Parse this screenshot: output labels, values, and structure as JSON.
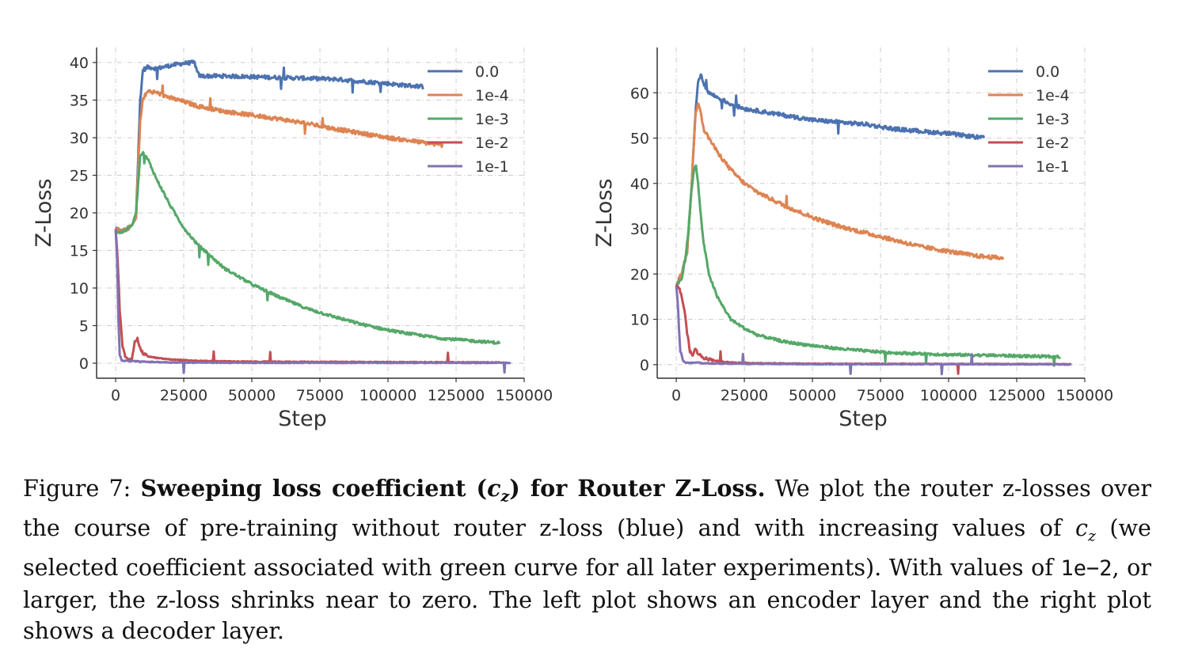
{
  "chart_data": [
    {
      "type": "line",
      "title": "",
      "xlabel": "Step",
      "ylabel": "Z-Loss",
      "xlim": [
        -7000,
        150000
      ],
      "ylim": [
        -2,
        42
      ],
      "xticks": [
        0,
        25000,
        50000,
        75000,
        100000,
        125000,
        150000
      ],
      "yticks": [
        0,
        5,
        10,
        15,
        20,
        25,
        30,
        35,
        40
      ],
      "grid": true,
      "legend_position": "top-right",
      "series": [
        {
          "name": "0.0",
          "color": "#4c72b0",
          "x": [
            0,
            2000,
            4000,
            6000,
            7500,
            9000,
            10000,
            12000,
            15000,
            20000,
            25000,
            29000,
            30000,
            31000,
            40000,
            50000,
            60000,
            70000,
            80000,
            90000,
            100000,
            105000,
            113000
          ],
          "y": [
            18,
            17.5,
            17.8,
            18.3,
            19.5,
            35,
            39,
            39.4,
            39.2,
            39.6,
            39.9,
            40,
            38.6,
            38.2,
            38.2,
            38.1,
            38,
            37.9,
            37.8,
            37.5,
            37.2,
            37,
            36.8
          ]
        },
        {
          "name": "1e-4",
          "color": "#dd8452",
          "x": [
            0,
            2000,
            4000,
            6000,
            7500,
            9000,
            10000,
            12000,
            15000,
            20000,
            25000,
            30000,
            40000,
            50000,
            60000,
            70000,
            80000,
            90000,
            100000,
            110000,
            120000
          ],
          "y": [
            18,
            17.5,
            17.8,
            18.3,
            19.5,
            32,
            35.2,
            36.2,
            36,
            35.3,
            34.8,
            34.2,
            33.5,
            33,
            32.5,
            31.9,
            31.2,
            30.6,
            30,
            29.5,
            29
          ]
        },
        {
          "name": "1e-3",
          "color": "#55a868",
          "x": [
            0,
            2000,
            4000,
            6000,
            7500,
            9000,
            10000,
            12000,
            15000,
            20000,
            25000,
            30000,
            40000,
            50000,
            60000,
            70000,
            80000,
            90000,
            100000,
            110000,
            120000,
            130000,
            141000
          ],
          "y": [
            17.5,
            17.4,
            17.8,
            18.3,
            20,
            27.5,
            28,
            27,
            24.5,
            21,
            18,
            15.8,
            12.6,
            10.5,
            8.8,
            7.3,
            6.2,
            5.2,
            4.4,
            3.8,
            3.3,
            3,
            2.7
          ]
        },
        {
          "name": "1e-2",
          "color": "#c44e52",
          "x": [
            0,
            700,
            1500,
            2500,
            3500,
            5000,
            6000,
            7000,
            8000,
            9000,
            10000,
            12000,
            15000,
            20000,
            30000,
            50000,
            100000,
            141000
          ],
          "y": [
            17.8,
            14,
            7,
            2.3,
            0.8,
            0.5,
            0.6,
            3,
            3.2,
            2,
            1.3,
            0.9,
            0.7,
            0.5,
            0.3,
            0.2,
            0.15,
            0.1
          ]
        },
        {
          "name": "1e-1",
          "color": "#8172b3",
          "x": [
            0,
            500,
            1000,
            1500,
            2200,
            3000,
            5000,
            10000,
            20000,
            50000,
            100000,
            145000
          ],
          "y": [
            17.8,
            14,
            6,
            1.2,
            0.3,
            0.3,
            0.3,
            0.2,
            0.1,
            0.05,
            0.05,
            0.05
          ]
        }
      ]
    },
    {
      "type": "line",
      "title": "",
      "xlabel": "Step",
      "ylabel": "Z-Loss",
      "xlim": [
        -7000,
        150000
      ],
      "ylim": [
        -3,
        70
      ],
      "xticks": [
        0,
        25000,
        50000,
        75000,
        100000,
        125000,
        150000
      ],
      "yticks": [
        0,
        10,
        20,
        30,
        40,
        50,
        60
      ],
      "grid": true,
      "legend_position": "top-right",
      "series": [
        {
          "name": "0.0",
          "color": "#4c72b0",
          "x": [
            0,
            2000,
            4000,
            5500,
            7000,
            8000,
            9000,
            10000,
            12000,
            15000,
            20000,
            25000,
            30000,
            40000,
            50000,
            60000,
            70000,
            80000,
            90000,
            100000,
            113000
          ],
          "y": [
            17.5,
            20,
            25,
            38,
            55,
            62,
            64,
            62,
            60,
            59,
            57.5,
            56.5,
            56,
            55,
            54,
            53.5,
            53,
            52,
            51.5,
            51,
            50
          ]
        },
        {
          "name": "1e-4",
          "color": "#dd8452",
          "x": [
            0,
            2000,
            4000,
            5500,
            7000,
            8000,
            9000,
            10000,
            12000,
            15000,
            20000,
            25000,
            30000,
            40000,
            50000,
            60000,
            70000,
            80000,
            90000,
            100000,
            110000,
            120000
          ],
          "y": [
            17.5,
            20,
            25,
            38,
            55,
            58,
            56,
            52,
            50,
            47,
            43,
            40,
            38,
            35,
            32.5,
            30.5,
            29,
            27.5,
            26,
            25,
            24,
            23.5
          ]
        },
        {
          "name": "1e-3",
          "color": "#55a868",
          "x": [
            0,
            2000,
            3500,
            4500,
            5500,
            6500,
            7200,
            8000,
            9000,
            10000,
            12000,
            15000,
            20000,
            25000,
            30000,
            40000,
            50000,
            60000,
            70000,
            80000,
            100000,
            120000,
            141000
          ],
          "y": [
            17.5,
            19,
            24,
            30,
            38,
            43,
            44,
            40,
            33,
            27,
            20,
            15,
            10,
            8,
            6.5,
            5,
            4.2,
            3.5,
            3,
            2.6,
            2.2,
            2,
            1.7
          ]
        },
        {
          "name": "1e-2",
          "color": "#c44e52",
          "x": [
            0,
            1000,
            2000,
            3000,
            4000,
            5000,
            6000,
            7000,
            8000,
            10000,
            15000,
            20000,
            30000,
            50000,
            100000,
            145000
          ],
          "y": [
            17.5,
            17,
            15,
            12,
            7,
            3,
            2,
            3.5,
            2.5,
            1.5,
            0.8,
            0.5,
            0.3,
            0.2,
            0.15,
            0.1
          ]
        },
        {
          "name": "1e-1",
          "color": "#8172b3",
          "x": [
            0,
            500,
            1000,
            1500,
            2500,
            3500,
            5000,
            8000,
            10000,
            20000,
            50000,
            100000,
            145000
          ],
          "y": [
            17.5,
            14,
            8,
            3,
            0.8,
            0.4,
            0.4,
            0.5,
            0.3,
            0.2,
            0.1,
            0.1,
            0.05
          ]
        }
      ]
    }
  ],
  "caption": {
    "figure_label": "Figure 7:",
    "bold_title_a": "Sweeping loss coefficient (",
    "math_c": "c",
    "math_sub": "z",
    "bold_title_b": ") for Router Z-Loss.",
    "text_1": "We plot the router z-losses over the course of pre-training without router z-loss (blue) and with increasing values of",
    "text_2": "(we selected coefficient associated with green curve for all later experiments). With values of",
    "code": "1e−2",
    "text_3": ", or larger, the z-loss shrinks near to zero.  The left plot shows an encoder layer and the right plot shows a decoder layer."
  }
}
